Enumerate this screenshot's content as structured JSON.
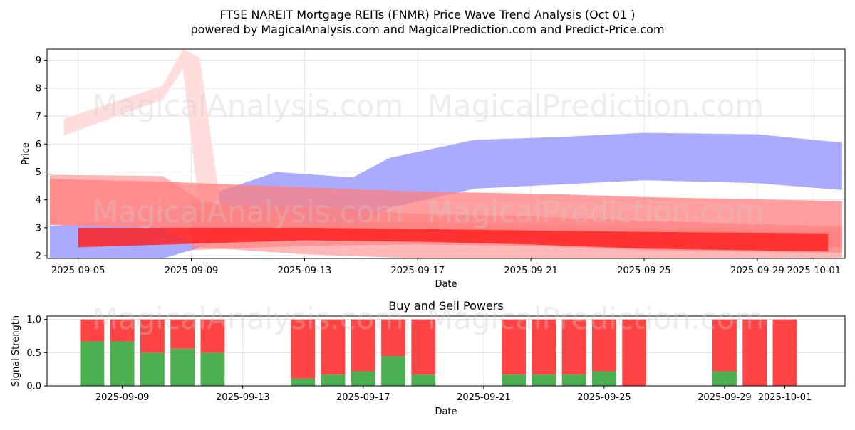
{
  "header": {
    "title_line1": "FTSE NAREIT Mortgage REITs (FNMR) Price Wave Trend Analysis (Oct 01 )",
    "title_line2": "powered by MagicalAnalysis.com and MagicalPrediction.com and Predict-Price.com"
  },
  "watermarks": [
    "MagicalAnalysis.com",
    "MagicalPrediction.com"
  ],
  "chart_data": [
    {
      "type": "area",
      "title": "",
      "xlabel": "Date",
      "ylabel": "Price",
      "x_range": [
        "2025-09-04",
        "2025-10-02"
      ],
      "ylim": [
        1.9,
        9.4
      ],
      "y_ticks": [
        2,
        3,
        4,
        5,
        6,
        7,
        8,
        9
      ],
      "x_ticks": [
        "2025-09-05",
        "2025-09-09",
        "2025-09-13",
        "2025-09-17",
        "2025-09-21",
        "2025-09-25",
        "2025-09-29",
        "2025-10-01"
      ],
      "grid": true,
      "colors": {
        "blue_band": "#aaaaff",
        "red_band": "#ff7f7f",
        "red_light": "#ffaaaa",
        "red_faint": "#ffdddd",
        "red_strong": "#ff2222"
      },
      "bands": [
        {
          "color": "blue_band",
          "opacity": 1.0,
          "points": [
            [
              "2025-09-04",
              3.05,
              1.9
            ],
            [
              "2025-09-06",
              3.2,
              1.9
            ],
            [
              "2025-09-08",
              3.5,
              1.9
            ],
            [
              "2025-09-10",
              4.3,
              2.5
            ],
            [
              "2025-09-12",
              5.0,
              3.2
            ],
            [
              "2025-09-14.7",
              4.8,
              3.0
            ],
            [
              "2025-09-16",
              5.5,
              3.7
            ],
            [
              "2025-09-19",
              6.15,
              4.4
            ],
            [
              "2025-09-22",
              6.25,
              4.55
            ],
            [
              "2025-09-25",
              6.4,
              4.7
            ],
            [
              "2025-09-29",
              6.35,
              4.6
            ],
            [
              "2025-10-02",
              6.05,
              4.35
            ]
          ]
        },
        {
          "color": "red_faint",
          "opacity": 1.0,
          "points": [
            [
              "2025-09-04.5",
              6.9,
              6.3
            ],
            [
              "2025-09-08",
              8.1,
              7.6
            ],
            [
              "2025-09-08.7",
              9.4,
              8.7
            ],
            [
              "2025-09-09.3",
              9.1,
              3.5
            ],
            [
              "2025-09-10",
              4.0,
              3.4
            ]
          ]
        },
        {
          "color": "red_light",
          "opacity": 0.85,
          "points": [
            [
              "2025-09-04",
              4.9,
              3.1
            ],
            [
              "2025-09-08",
              4.85,
              3.0
            ],
            [
              "2025-09-09.3",
              4.0,
              2.3
            ],
            [
              "2025-09-13",
              3.2,
              2.05
            ],
            [
              "2025-09-17",
              3.2,
              1.9
            ],
            [
              "2025-09-25",
              3.0,
              1.9
            ],
            [
              "2025-10-02",
              2.95,
              1.9
            ]
          ]
        },
        {
          "color": "red_band",
          "opacity": 0.75,
          "points": [
            [
              "2025-09-04",
              4.75,
              3.1
            ],
            [
              "2025-09-08",
              4.65,
              3.0
            ],
            [
              "2025-09-13",
              4.45,
              2.7
            ],
            [
              "2025-09-17",
              4.3,
              2.6
            ],
            [
              "2025-09-22",
              4.2,
              2.5
            ],
            [
              "2025-09-25",
              4.1,
              2.35
            ],
            [
              "2025-10-02",
              3.95,
              2.3
            ]
          ]
        },
        {
          "color": "red_band",
          "opacity": 0.6,
          "points": [
            [
              "2025-09-09",
              3.9,
              2.2
            ],
            [
              "2025-09-13",
              3.75,
              2.35
            ],
            [
              "2025-09-17",
              3.5,
              2.4
            ],
            [
              "2025-09-21",
              3.4,
              2.35
            ],
            [
              "2025-09-25",
              3.25,
              2.2
            ],
            [
              "2025-10-02",
              3.05,
              2.1
            ]
          ]
        },
        {
          "color": "red_strong",
          "opacity": 0.85,
          "points": [
            [
              "2025-09-05",
              3.0,
              2.3
            ],
            [
              "2025-09-13",
              3.0,
              2.55
            ],
            [
              "2025-09-17",
              2.95,
              2.5
            ],
            [
              "2025-09-21",
              2.9,
              2.4
            ],
            [
              "2025-09-25",
              2.85,
              2.25
            ],
            [
              "2025-10-01.5",
              2.8,
              2.15
            ]
          ]
        }
      ]
    },
    {
      "type": "bar",
      "title": "Buy and Sell Powers",
      "xlabel": "Date",
      "ylabel": "Signal Strength",
      "ylim": [
        0,
        1.05
      ],
      "y_ticks": [
        "0.0",
        "0.5",
        "1.0"
      ],
      "x_range": [
        "2025-09-06.5",
        "2025-10-03"
      ],
      "x_ticks": [
        "2025-09-09",
        "2025-09-13",
        "2025-09-17",
        "2025-09-21",
        "2025-09-25",
        "2025-09-29",
        "2025-10-01"
      ],
      "colors": {
        "buy": "#4caf50",
        "sell": "#ff4444"
      },
      "series": [
        {
          "name": "Buy",
          "values": [
            0.67,
            0.67,
            0.5,
            0.56,
            0.5,
            0.11,
            0.17,
            0.22,
            0.45,
            0.17,
            0.17,
            0.17,
            0.17,
            0.22,
            0.0,
            0.22,
            0.0,
            0.0
          ]
        },
        {
          "name": "Sell",
          "values": [
            0.33,
            0.33,
            0.5,
            0.44,
            0.5,
            0.89,
            0.83,
            0.78,
            0.55,
            0.83,
            0.83,
            0.83,
            0.83,
            0.78,
            1.0,
            0.78,
            1.0,
            1.0
          ]
        }
      ],
      "dates": [
        "2025-09-08",
        "2025-09-09",
        "2025-09-10",
        "2025-09-11",
        "2025-09-12",
        "2025-09-15",
        "2025-09-16",
        "2025-09-17",
        "2025-09-18",
        "2025-09-19",
        "2025-09-22",
        "2025-09-23",
        "2025-09-24",
        "2025-09-25",
        "2025-09-26",
        "2025-09-29",
        "2025-09-30",
        "2025-10-01"
      ]
    }
  ]
}
